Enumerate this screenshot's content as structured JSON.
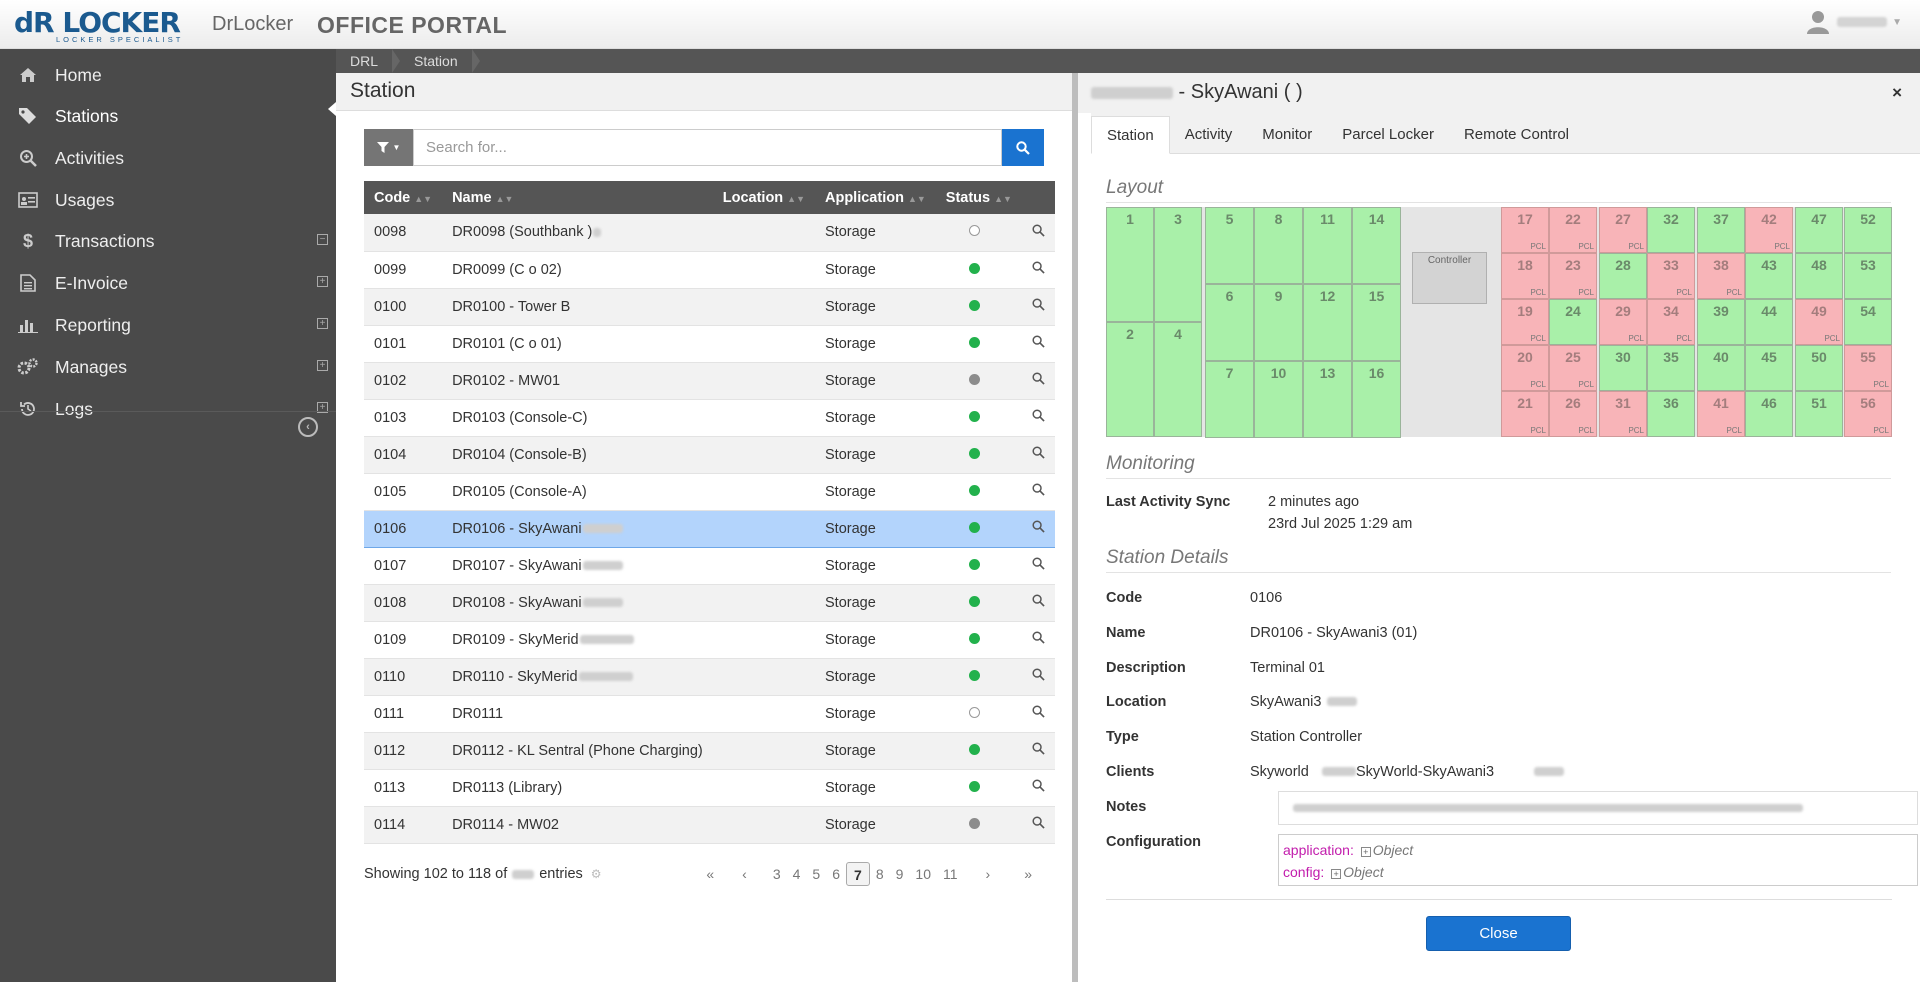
{
  "header": {
    "logo_text": "dR LOCKER",
    "logo_tagline": "LOCKER SPECIALIST",
    "brand_name": "DrLocker",
    "portal_title": "OFFICE PORTAL"
  },
  "sidebar": {
    "items": [
      {
        "label": "Home",
        "icon": "home-icon",
        "expandable": false,
        "active": false
      },
      {
        "label": "Stations",
        "icon": "tags-icon",
        "expandable": false,
        "active": true
      },
      {
        "label": "Activities",
        "icon": "search-plus-icon",
        "expandable": false,
        "active": false
      },
      {
        "label": "Usages",
        "icon": "id-card-icon",
        "expandable": false,
        "active": false
      },
      {
        "label": "Transactions",
        "icon": "dollar-icon",
        "expandable": true,
        "active": false
      },
      {
        "label": "E-Invoice",
        "icon": "document-icon",
        "expandable": true,
        "active": false
      },
      {
        "label": "Reporting",
        "icon": "bar-chart-icon",
        "expandable": true,
        "active": false
      },
      {
        "label": "Manages",
        "icon": "gears-icon",
        "expandable": true,
        "active": false
      },
      {
        "label": "Logs",
        "icon": "history-icon",
        "expandable": true,
        "active": false
      }
    ]
  },
  "breadcrumb": [
    "DRL",
    "Station"
  ],
  "station_list": {
    "title": "Station",
    "search_placeholder": "Search for...",
    "columns": [
      "Code",
      "Name",
      "Location",
      "Application",
      "Status"
    ],
    "rows": [
      {
        "code": "0098",
        "name": "DR0098 (Southbank )",
        "location": "",
        "application": "Storage",
        "status": "empty"
      },
      {
        "code": "0099",
        "name": "DR0099 (C    o 02)",
        "location": "",
        "application": "Storage",
        "status": "green"
      },
      {
        "code": "0100",
        "name": "DR0100 - Tower B",
        "location": "",
        "application": "Storage",
        "status": "green"
      },
      {
        "code": "0101",
        "name": "DR0101 (C    o 01)",
        "location": "",
        "application": "Storage",
        "status": "green"
      },
      {
        "code": "0102",
        "name": "DR0102 - MW01",
        "location": "",
        "application": "Storage",
        "status": "grey"
      },
      {
        "code": "0103",
        "name": "DR0103 (Console-C)",
        "location": "",
        "application": "Storage",
        "status": "green"
      },
      {
        "code": "0104",
        "name": "DR0104 (Console-B)",
        "location": "",
        "application": "Storage",
        "status": "green"
      },
      {
        "code": "0105",
        "name": "DR0105 (Console-A)",
        "location": "",
        "application": "Storage",
        "status": "green"
      },
      {
        "code": "0106",
        "name": "DR0106 - SkyAwani",
        "location": "",
        "application": "Storage",
        "status": "green",
        "selected": true
      },
      {
        "code": "0107",
        "name": "DR0107 - SkyAwani",
        "location": "",
        "application": "Storage",
        "status": "green"
      },
      {
        "code": "0108",
        "name": "DR0108 - SkyAwani",
        "location": "",
        "application": "Storage",
        "status": "green"
      },
      {
        "code": "0109",
        "name": "DR0109 - SkyMerid",
        "location": "",
        "application": "Storage",
        "status": "green"
      },
      {
        "code": "0110",
        "name": "DR0110 - SkyMerid",
        "location": "",
        "application": "Storage",
        "status": "green"
      },
      {
        "code": "0111",
        "name": "DR0111",
        "location": "",
        "application": "Storage",
        "status": "empty"
      },
      {
        "code": "0112",
        "name": "DR0112 - KL Sentral (Phone Charging)",
        "location": "",
        "application": "Storage",
        "status": "green"
      },
      {
        "code": "0113",
        "name": "DR0113 (Library)",
        "location": "",
        "application": "Storage",
        "status": "green"
      },
      {
        "code": "0114",
        "name": "DR0114 - MW02",
        "location": "",
        "application": "Storage",
        "status": "grey"
      }
    ],
    "footer_prefix": "Showing 102 to 118 of",
    "footer_suffix": "entries",
    "pagination": [
      "«",
      "‹",
      "3",
      "4",
      "5",
      "6",
      "7",
      "8",
      "9",
      "10",
      "11",
      "›",
      "»"
    ],
    "current_page": "7"
  },
  "detail": {
    "title": " - SkyAwani  (  )",
    "tabs": [
      "Station",
      "Activity",
      "Monitor",
      "Parcel Locker",
      "Remote Control"
    ],
    "active_tab": "Station",
    "layout_title": "Layout",
    "controller_label": "Controller",
    "lockers": [
      {
        "n": "1",
        "s": "g",
        "pcl": false
      },
      {
        "n": "2",
        "s": "g",
        "pcl": false
      },
      {
        "n": "3",
        "s": "g",
        "pcl": false
      },
      {
        "n": "4",
        "s": "g",
        "pcl": false
      },
      {
        "n": "5",
        "s": "g",
        "pcl": false
      },
      {
        "n": "6",
        "s": "g",
        "pcl": false
      },
      {
        "n": "7",
        "s": "g",
        "pcl": false
      },
      {
        "n": "8",
        "s": "g",
        "pcl": false
      },
      {
        "n": "9",
        "s": "g",
        "pcl": false
      },
      {
        "n": "10",
        "s": "g",
        "pcl": false
      },
      {
        "n": "11",
        "s": "g",
        "pcl": false
      },
      {
        "n": "12",
        "s": "g",
        "pcl": false
      },
      {
        "n": "13",
        "s": "g",
        "pcl": false
      },
      {
        "n": "14",
        "s": "g",
        "pcl": false
      },
      {
        "n": "15",
        "s": "g",
        "pcl": false
      },
      {
        "n": "16",
        "s": "g",
        "pcl": false
      },
      {
        "n": "17",
        "s": "r",
        "pcl": true
      },
      {
        "n": "18",
        "s": "r",
        "pcl": true
      },
      {
        "n": "19",
        "s": "r",
        "pcl": true
      },
      {
        "n": "20",
        "s": "r",
        "pcl": true
      },
      {
        "n": "21",
        "s": "r",
        "pcl": true
      },
      {
        "n": "22",
        "s": "r",
        "pcl": true
      },
      {
        "n": "23",
        "s": "r",
        "pcl": true
      },
      {
        "n": "24",
        "s": "g",
        "pcl": false
      },
      {
        "n": "25",
        "s": "r",
        "pcl": true
      },
      {
        "n": "26",
        "s": "r",
        "pcl": true
      },
      {
        "n": "27",
        "s": "r",
        "pcl": true
      },
      {
        "n": "28",
        "s": "g",
        "pcl": false
      },
      {
        "n": "29",
        "s": "r",
        "pcl": true
      },
      {
        "n": "30",
        "s": "g",
        "pcl": false
      },
      {
        "n": "31",
        "s": "r",
        "pcl": true
      },
      {
        "n": "32",
        "s": "g",
        "pcl": false
      },
      {
        "n": "33",
        "s": "r",
        "pcl": true
      },
      {
        "n": "34",
        "s": "r",
        "pcl": true
      },
      {
        "n": "35",
        "s": "g",
        "pcl": false
      },
      {
        "n": "36",
        "s": "g",
        "pcl": false
      },
      {
        "n": "37",
        "s": "g",
        "pcl": false
      },
      {
        "n": "38",
        "s": "r",
        "pcl": true
      },
      {
        "n": "39",
        "s": "g",
        "pcl": false
      },
      {
        "n": "40",
        "s": "g",
        "pcl": false
      },
      {
        "n": "41",
        "s": "r",
        "pcl": true
      },
      {
        "n": "42",
        "s": "r",
        "pcl": true
      },
      {
        "n": "43",
        "s": "g",
        "pcl": false
      },
      {
        "n": "44",
        "s": "g",
        "pcl": false
      },
      {
        "n": "45",
        "s": "g",
        "pcl": false
      },
      {
        "n": "46",
        "s": "g",
        "pcl": false
      },
      {
        "n": "47",
        "s": "g",
        "pcl": false
      },
      {
        "n": "48",
        "s": "g",
        "pcl": false
      },
      {
        "n": "49",
        "s": "r",
        "pcl": true
      },
      {
        "n": "50",
        "s": "g",
        "pcl": false
      },
      {
        "n": "51",
        "s": "g",
        "pcl": false
      },
      {
        "n": "52",
        "s": "g",
        "pcl": false
      },
      {
        "n": "53",
        "s": "g",
        "pcl": false
      },
      {
        "n": "54",
        "s": "g",
        "pcl": false
      },
      {
        "n": "55",
        "s": "r",
        "pcl": true
      },
      {
        "n": "56",
        "s": "r",
        "pcl": true
      }
    ],
    "pcl_label": "PCL",
    "monitoring_title": "Monitoring",
    "last_sync_label": "Last Activity Sync",
    "last_sync_relative": "2 minutes ago",
    "last_sync_absolute": "23rd Jul 2025 1:29 am",
    "details_title": "Station Details",
    "fields": {
      "code_label": "Code",
      "code": "0106",
      "name_label": "Name",
      "name": "DR0106 - SkyAwani3 (01)",
      "description_label": "Description",
      "description": "Terminal 01",
      "location_label": "Location",
      "location": "SkyAwani3",
      "type_label": "Type",
      "type": "Station Controller",
      "clients_label": "Clients",
      "client_1": "Skyworld",
      "client_2": "SkyWorld-SkyAwani3",
      "notes_label": "Notes",
      "configuration_label": "Configuration"
    },
    "config": [
      {
        "key": "application:",
        "value": "Object"
      },
      {
        "key": "config:",
        "value": "Object"
      }
    ],
    "close_label": "Close"
  },
  "colors": {
    "accent": "#1a73d0",
    "sidebar": "#4a4a4a",
    "available": "#a9f0a9",
    "occupied": "#f8b4b8",
    "selected_row": "#b3d4fc",
    "status_green": "#22b14c"
  }
}
